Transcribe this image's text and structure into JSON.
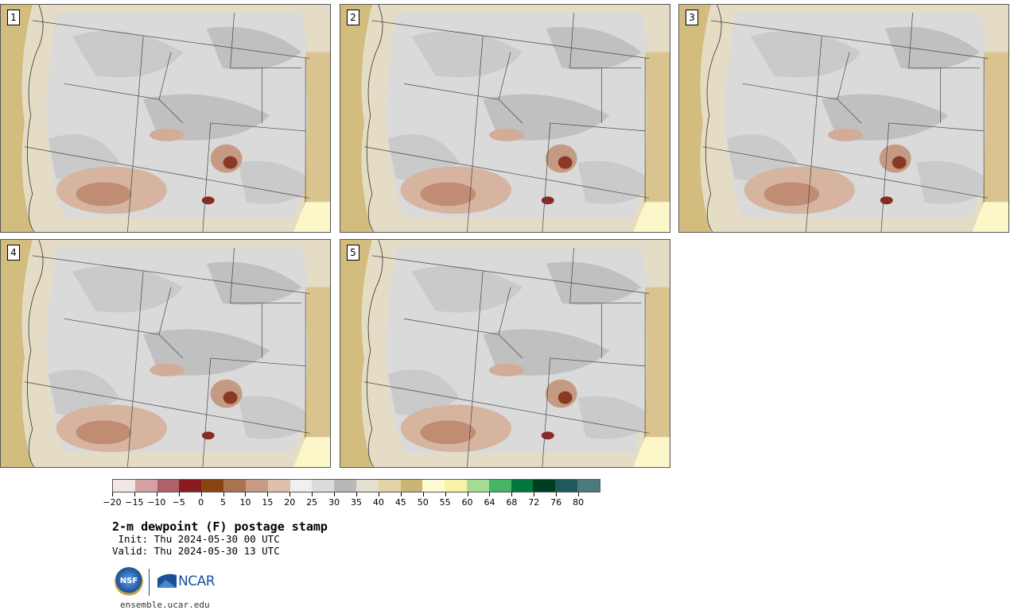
{
  "panels": [
    {
      "label": "1"
    },
    {
      "label": "2"
    },
    {
      "label": "3"
    },
    {
      "label": "4"
    },
    {
      "label": "5"
    }
  ],
  "colorbar": {
    "colors": [
      "#f3e6e6",
      "#d4a0a4",
      "#b06068",
      "#8a1a22",
      "#8a4412",
      "#aa7250",
      "#c89c84",
      "#dec0ac",
      "#f0f0f0",
      "#dcdcdc",
      "#b8b8b8",
      "#e4e0d0",
      "#e2d4a8",
      "#ccb474",
      "#fdfbd4",
      "#f8f4a6",
      "#a6dc92",
      "#46b466",
      "#00783c",
      "#003c22",
      "#1c5a5c",
      "#4c7a7c"
    ],
    "tick_labels": [
      "−20",
      "−15",
      "−10",
      "−5",
      "0",
      "5",
      "10",
      "15",
      "20",
      "25",
      "30",
      "35",
      "40",
      "45",
      "50",
      "55",
      "60",
      "64",
      "68",
      "72",
      "76",
      "80"
    ]
  },
  "title": "2-m dewpoint (F) postage stamp",
  "init": " Init: Thu 2024-05-30 00 UTC",
  "valid": "Valid: Thu 2024-05-30 13 UTC",
  "logos": {
    "nsf": "NSF",
    "ncar": "NCAR"
  },
  "footer": "ensemble.ucar.edu"
}
